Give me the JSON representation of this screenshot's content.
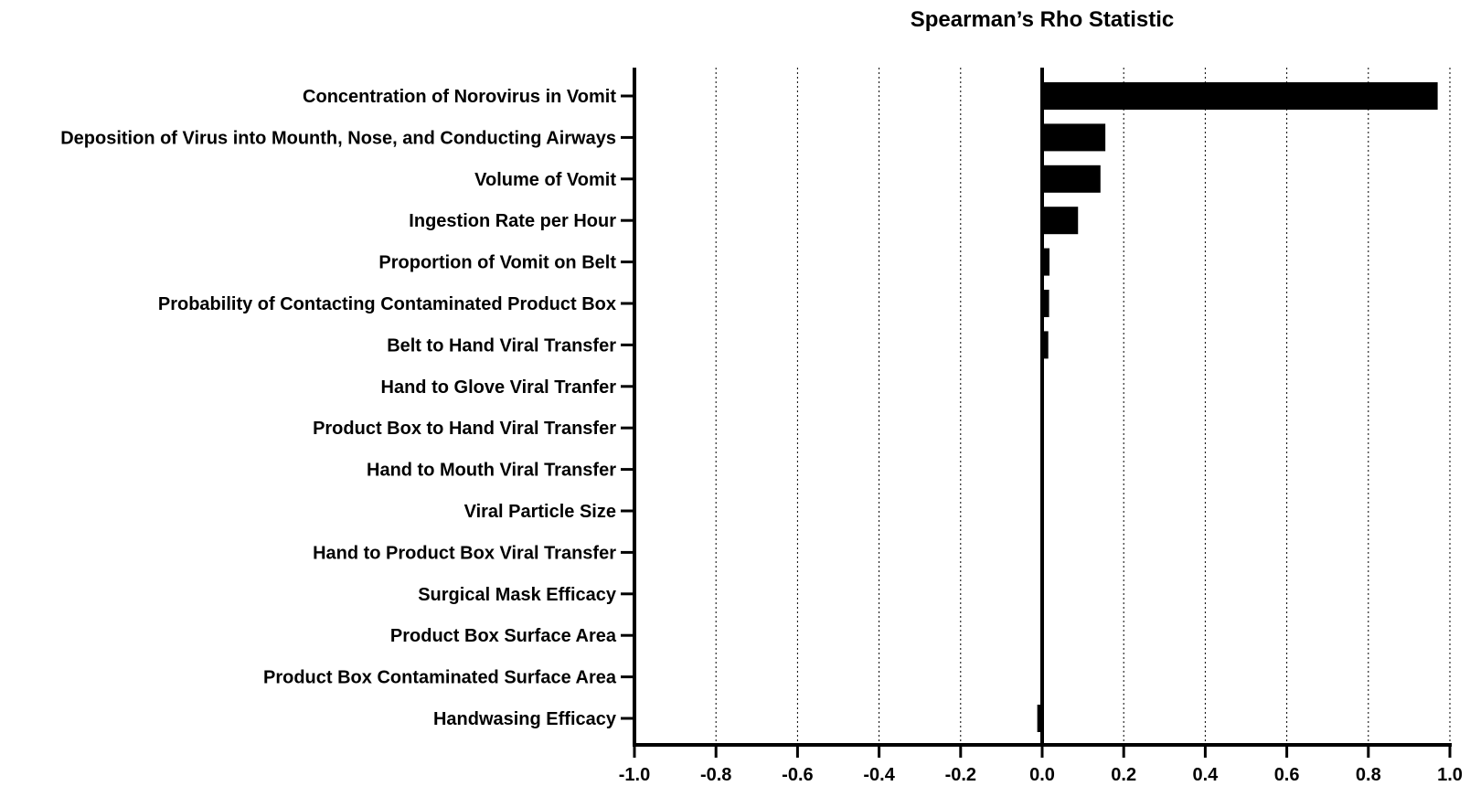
{
  "chart_data": {
    "type": "bar",
    "orientation": "horizontal",
    "title": "Spearman’s Rho Statistic",
    "xlabel": "",
    "ylabel": "",
    "xlim": [
      -1.0,
      1.0
    ],
    "x_ticks": [
      -1.0,
      -0.8,
      -0.6,
      -0.4,
      -0.2,
      0.0,
      0.2,
      0.4,
      0.6,
      0.8,
      1.0
    ],
    "x_tick_labels": [
      "-1.0",
      "-0.8",
      "-0.6",
      "-0.4",
      "-0.2",
      "0.0",
      "0.2",
      "0.4",
      "0.6",
      "0.8",
      "1.0"
    ],
    "grid": "vertical dotted",
    "bar_color": "#000000",
    "categories": [
      "Concentration of Norovirus in Vomit",
      "Deposition of Virus into Mounth, Nose, and Conducting Airways",
      "Volume of Vomit",
      "Ingestion Rate per Hour",
      "Proportion of Vomit on Belt",
      "Probability of Contacting Contaminated Product Box",
      "Belt to Hand Viral Transfer",
      "Hand to Glove Viral Tranfer ",
      "Product Box to Hand Viral Transfer",
      "Hand to Mouth Viral Transfer",
      "Viral Particle Size ",
      "Hand to Product Box Viral Transfer",
      "Surgical Mask Efficacy",
      "Product Box Surface Area",
      "Product Box Contaminated Surface Area",
      "Handwasing Efficacy"
    ],
    "values": [
      0.97,
      0.155,
      0.143,
      0.088,
      0.018,
      0.017,
      0.015,
      0.001,
      0.001,
      0.001,
      0.001,
      0.001,
      0.001,
      0.001,
      0.002,
      -0.012
    ]
  }
}
